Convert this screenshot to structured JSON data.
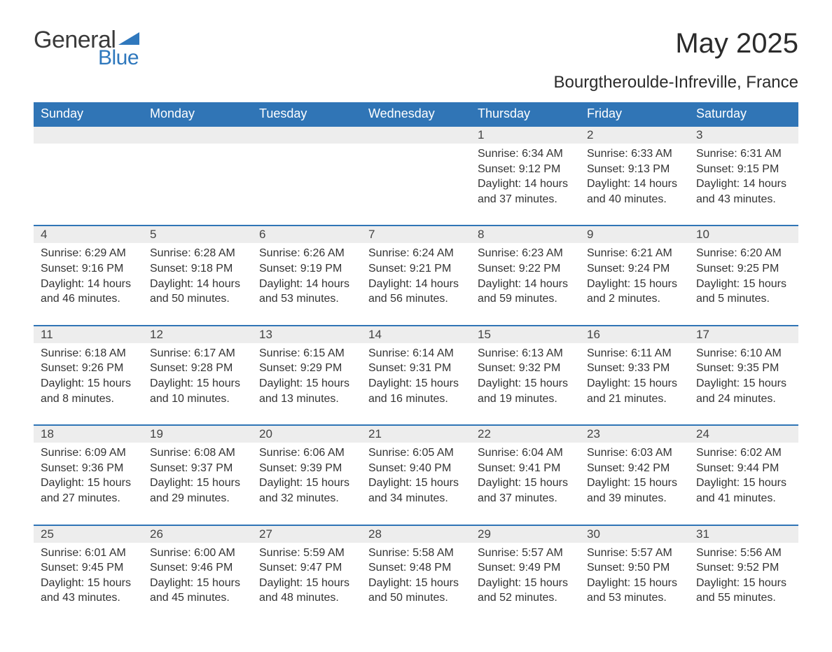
{
  "logo": {
    "text1": "General",
    "text2": "Blue",
    "accent_color": "#2f78bd"
  },
  "title": "May 2025",
  "location": "Bourgtheroulde-Infreville, France",
  "colors": {
    "header_bg": "#3075b6",
    "header_text": "#ffffff",
    "daynum_bg": "#ededed",
    "row_border": "#3075b6",
    "body_text": "#333333",
    "page_bg": "#ffffff"
  },
  "font": {
    "family": "Arial",
    "title_size_pt": 30,
    "subtitle_size_pt": 18,
    "header_size_pt": 13,
    "body_size_pt": 12
  },
  "weekdays": [
    "Sunday",
    "Monday",
    "Tuesday",
    "Wednesday",
    "Thursday",
    "Friday",
    "Saturday"
  ],
  "first_weekday_index": 4,
  "days": [
    {
      "n": 1,
      "sunrise": "6:34 AM",
      "sunset": "9:12 PM",
      "daylight": "14 hours and 37 minutes."
    },
    {
      "n": 2,
      "sunrise": "6:33 AM",
      "sunset": "9:13 PM",
      "daylight": "14 hours and 40 minutes."
    },
    {
      "n": 3,
      "sunrise": "6:31 AM",
      "sunset": "9:15 PM",
      "daylight": "14 hours and 43 minutes."
    },
    {
      "n": 4,
      "sunrise": "6:29 AM",
      "sunset": "9:16 PM",
      "daylight": "14 hours and 46 minutes."
    },
    {
      "n": 5,
      "sunrise": "6:28 AM",
      "sunset": "9:18 PM",
      "daylight": "14 hours and 50 minutes."
    },
    {
      "n": 6,
      "sunrise": "6:26 AM",
      "sunset": "9:19 PM",
      "daylight": "14 hours and 53 minutes."
    },
    {
      "n": 7,
      "sunrise": "6:24 AM",
      "sunset": "9:21 PM",
      "daylight": "14 hours and 56 minutes."
    },
    {
      "n": 8,
      "sunrise": "6:23 AM",
      "sunset": "9:22 PM",
      "daylight": "14 hours and 59 minutes."
    },
    {
      "n": 9,
      "sunrise": "6:21 AM",
      "sunset": "9:24 PM",
      "daylight": "15 hours and 2 minutes."
    },
    {
      "n": 10,
      "sunrise": "6:20 AM",
      "sunset": "9:25 PM",
      "daylight": "15 hours and 5 minutes."
    },
    {
      "n": 11,
      "sunrise": "6:18 AM",
      "sunset": "9:26 PM",
      "daylight": "15 hours and 8 minutes."
    },
    {
      "n": 12,
      "sunrise": "6:17 AM",
      "sunset": "9:28 PM",
      "daylight": "15 hours and 10 minutes."
    },
    {
      "n": 13,
      "sunrise": "6:15 AM",
      "sunset": "9:29 PM",
      "daylight": "15 hours and 13 minutes."
    },
    {
      "n": 14,
      "sunrise": "6:14 AM",
      "sunset": "9:31 PM",
      "daylight": "15 hours and 16 minutes."
    },
    {
      "n": 15,
      "sunrise": "6:13 AM",
      "sunset": "9:32 PM",
      "daylight": "15 hours and 19 minutes."
    },
    {
      "n": 16,
      "sunrise": "6:11 AM",
      "sunset": "9:33 PM",
      "daylight": "15 hours and 21 minutes."
    },
    {
      "n": 17,
      "sunrise": "6:10 AM",
      "sunset": "9:35 PM",
      "daylight": "15 hours and 24 minutes."
    },
    {
      "n": 18,
      "sunrise": "6:09 AM",
      "sunset": "9:36 PM",
      "daylight": "15 hours and 27 minutes."
    },
    {
      "n": 19,
      "sunrise": "6:08 AM",
      "sunset": "9:37 PM",
      "daylight": "15 hours and 29 minutes."
    },
    {
      "n": 20,
      "sunrise": "6:06 AM",
      "sunset": "9:39 PM",
      "daylight": "15 hours and 32 minutes."
    },
    {
      "n": 21,
      "sunrise": "6:05 AM",
      "sunset": "9:40 PM",
      "daylight": "15 hours and 34 minutes."
    },
    {
      "n": 22,
      "sunrise": "6:04 AM",
      "sunset": "9:41 PM",
      "daylight": "15 hours and 37 minutes."
    },
    {
      "n": 23,
      "sunrise": "6:03 AM",
      "sunset": "9:42 PM",
      "daylight": "15 hours and 39 minutes."
    },
    {
      "n": 24,
      "sunrise": "6:02 AM",
      "sunset": "9:44 PM",
      "daylight": "15 hours and 41 minutes."
    },
    {
      "n": 25,
      "sunrise": "6:01 AM",
      "sunset": "9:45 PM",
      "daylight": "15 hours and 43 minutes."
    },
    {
      "n": 26,
      "sunrise": "6:00 AM",
      "sunset": "9:46 PM",
      "daylight": "15 hours and 45 minutes."
    },
    {
      "n": 27,
      "sunrise": "5:59 AM",
      "sunset": "9:47 PM",
      "daylight": "15 hours and 48 minutes."
    },
    {
      "n": 28,
      "sunrise": "5:58 AM",
      "sunset": "9:48 PM",
      "daylight": "15 hours and 50 minutes."
    },
    {
      "n": 29,
      "sunrise": "5:57 AM",
      "sunset": "9:49 PM",
      "daylight": "15 hours and 52 minutes."
    },
    {
      "n": 30,
      "sunrise": "5:57 AM",
      "sunset": "9:50 PM",
      "daylight": "15 hours and 53 minutes."
    },
    {
      "n": 31,
      "sunrise": "5:56 AM",
      "sunset": "9:52 PM",
      "daylight": "15 hours and 55 minutes."
    }
  ],
  "labels": {
    "sunrise": "Sunrise: ",
    "sunset": "Sunset: ",
    "daylight": "Daylight: "
  }
}
